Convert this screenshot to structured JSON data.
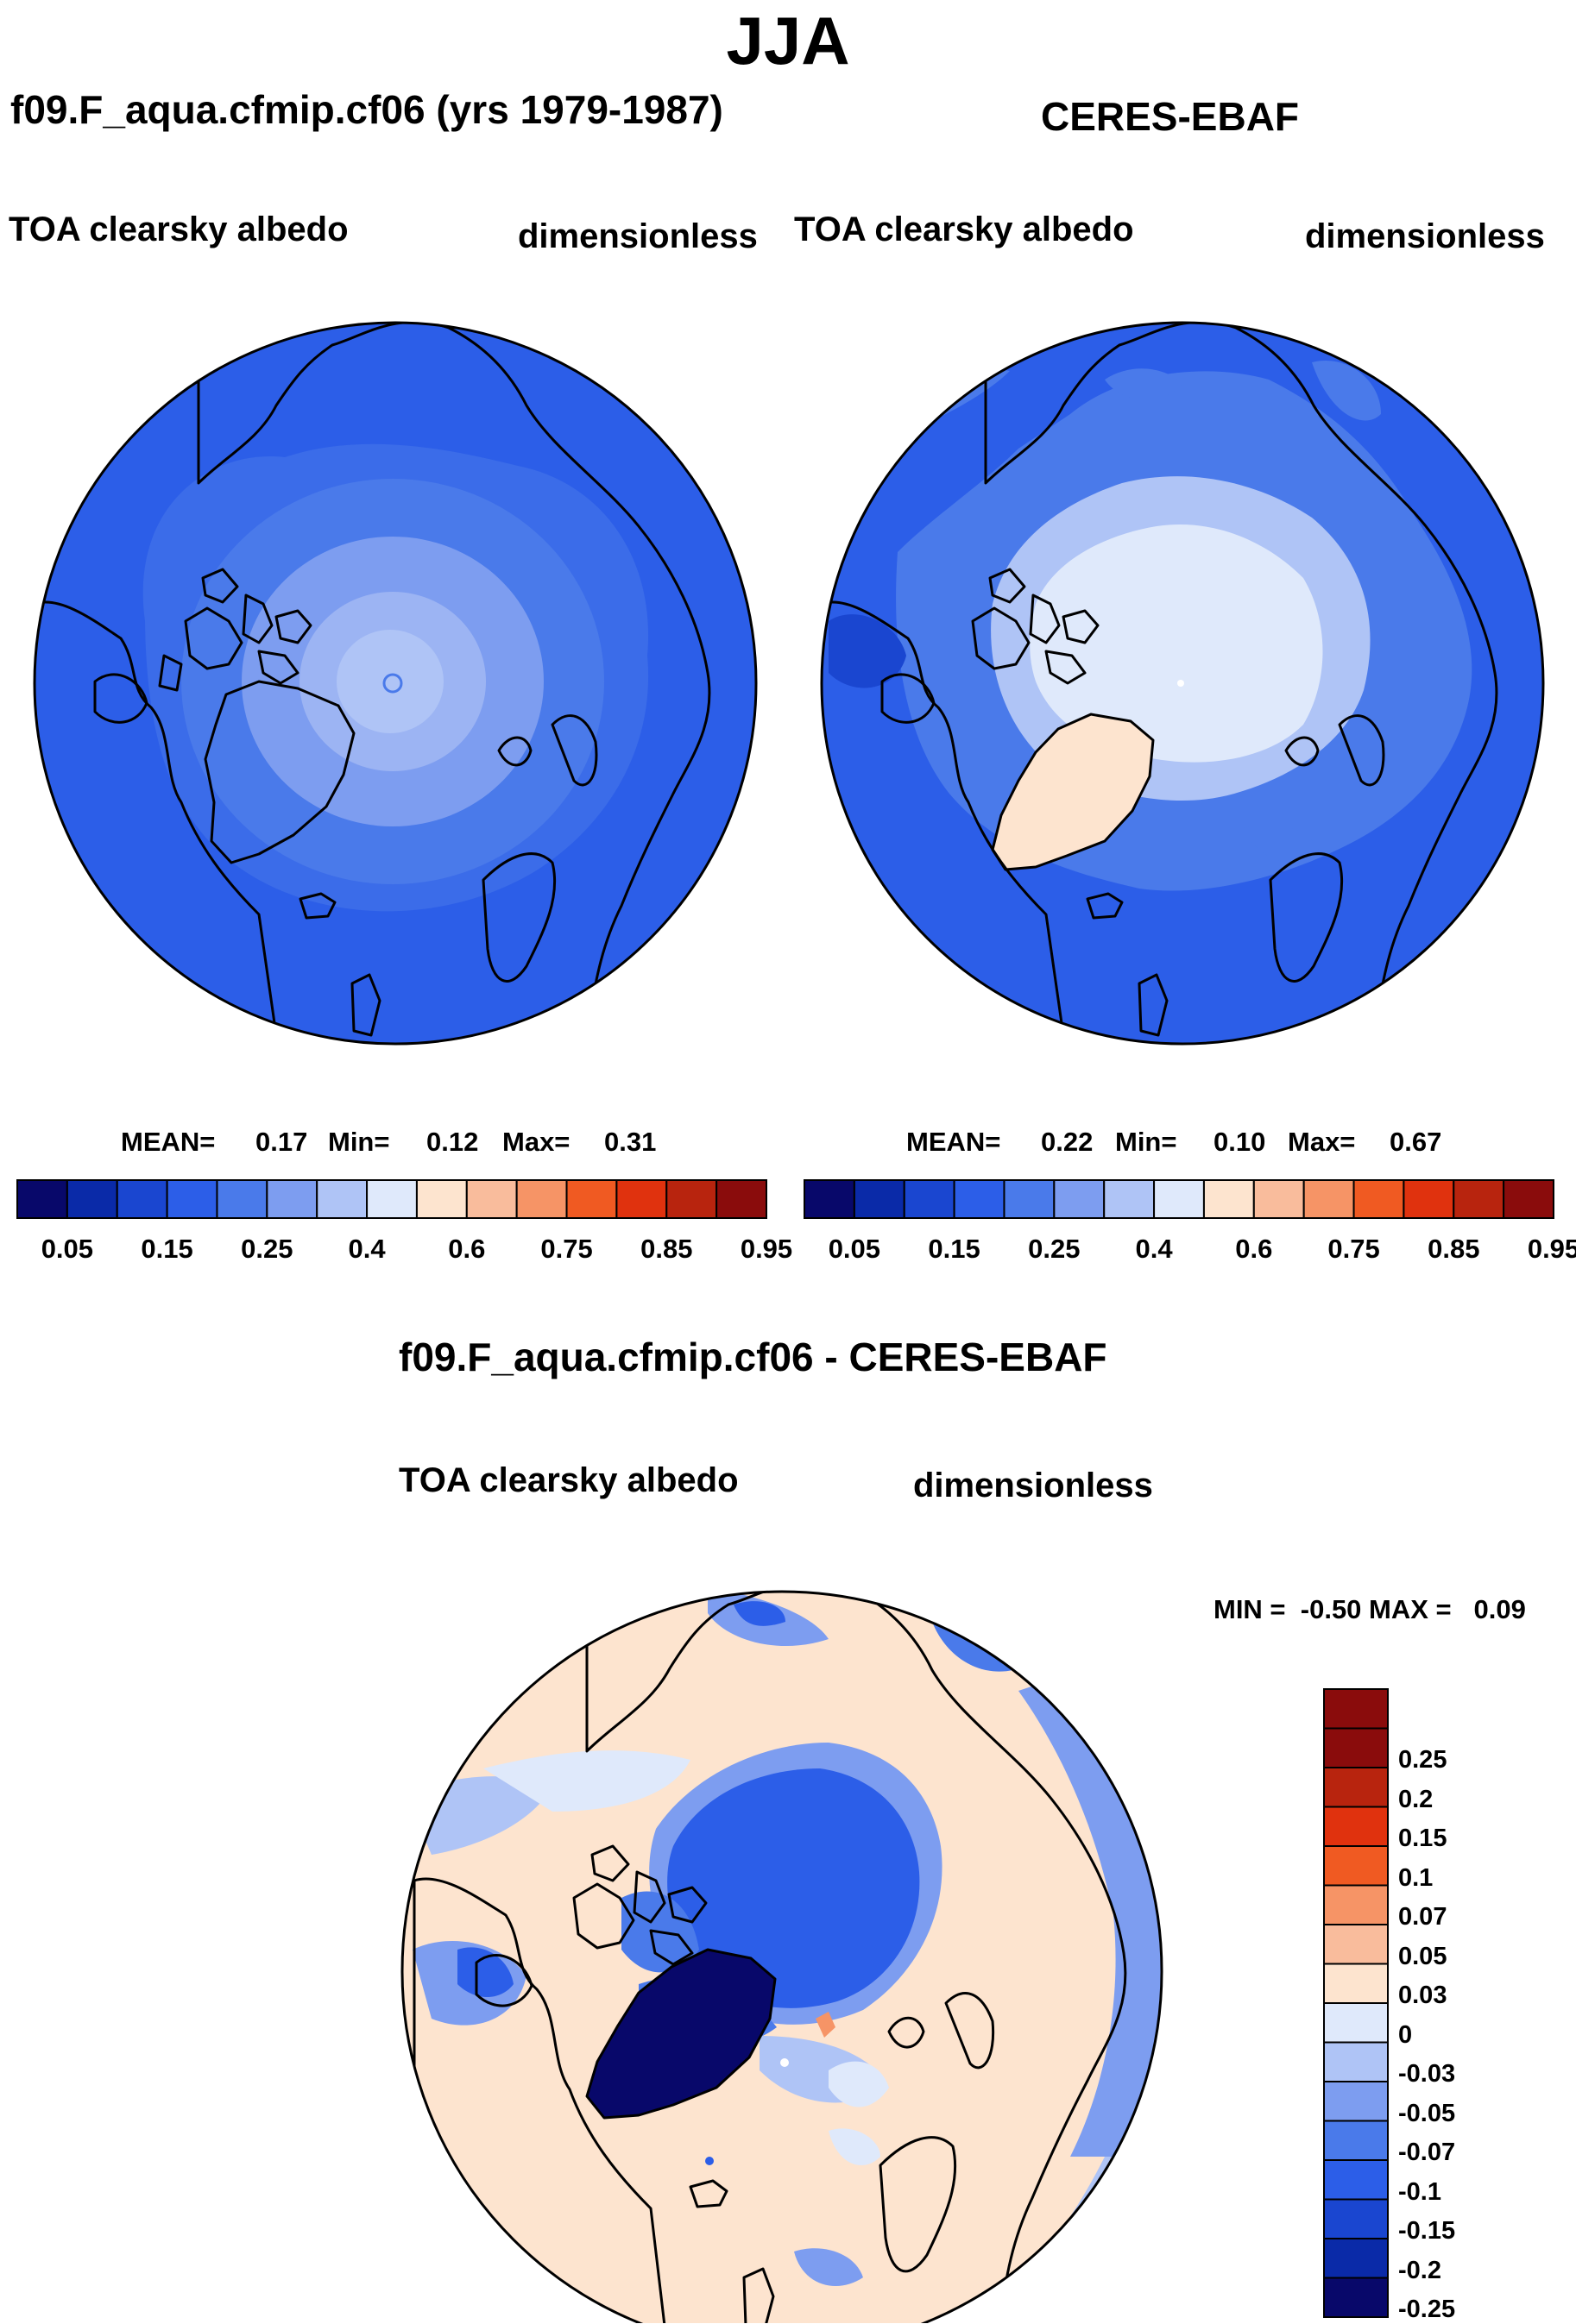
{
  "title": "JJA",
  "panels": [
    {
      "case": "f09.F_aqua.cfmip.cf06 (yrs 1979-1987)",
      "variable": "TOA clearsky albedo",
      "units": "dimensionless",
      "stats": {
        "mean_label": "MEAN=",
        "mean": "0.17",
        "min_label": "Min=",
        "min": "0.12",
        "max_label": "Max=",
        "max": "0.31"
      }
    },
    {
      "case": "CERES-EBAF",
      "variable": "TOA clearsky albedo",
      "units": "dimensionless",
      "stats": {
        "mean_label": "MEAN=",
        "mean": "0.22",
        "min_label": "Min=",
        "min": "0.10",
        "max_label": "Max=",
        "max": "0.67"
      }
    }
  ],
  "diff_panel": {
    "case": "f09.F_aqua.cfmip.cf06 - CERES-EBAF",
    "variable": "TOA clearsky albedo",
    "units": "dimensionless",
    "minmax": "MIN =  -0.50 MAX =   0.09"
  },
  "colorbar_h": {
    "colors": [
      "#08086a",
      "#0a2aa8",
      "#1a46d0",
      "#2c5ee8",
      "#4a7aea",
      "#7d9df0",
      "#afc4f6",
      "#dfe9fb",
      "#fde4cf",
      "#f9bc9c",
      "#f69466",
      "#f05a22",
      "#e0320e",
      "#b8240e",
      "#8a0c0c"
    ],
    "ticks": [
      "0.05",
      "0.15",
      "0.25",
      "0.4",
      "0.6",
      "0.75",
      "0.85",
      "0.95"
    ]
  },
  "colorbar_v": {
    "colors": [
      "#8a0c0c",
      "#b8240e",
      "#e0320e",
      "#f05a22",
      "#f69466",
      "#f9bc9c",
      "#fde4cf",
      "#dfe9fb",
      "#afc4f6",
      "#7d9df0",
      "#4a7aea",
      "#2c5ee8",
      "#1a46d0",
      "#0a2aa8",
      "#08086a"
    ],
    "ticks": [
      "0.25",
      "0.2",
      "0.15",
      "0.1",
      "0.07",
      "0.05",
      "0.03",
      "0",
      "-0.03",
      "-0.05",
      "-0.07",
      "-0.1",
      "-0.15",
      "-0.2",
      "-0.25"
    ]
  }
}
